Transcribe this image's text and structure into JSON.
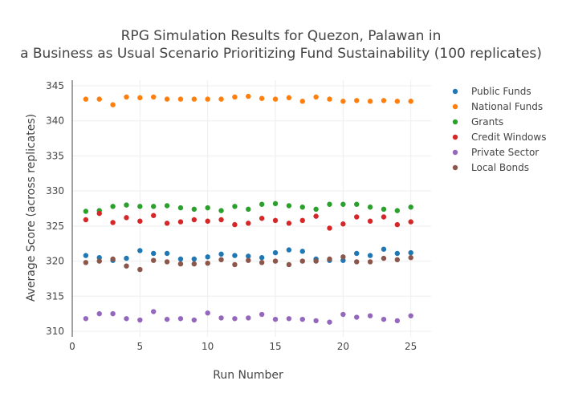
{
  "chart_data": {
    "type": "scatter",
    "title_lines": [
      "RPG Simulation Results for Quezon, Palawan in",
      "a Business as Usual Scenario Prioritizing Fund Sustainability (100 replicates)"
    ],
    "xlabel": "Run Number",
    "ylabel": "Average Score (across replicates)",
    "xlim": [
      0,
      26.5
    ],
    "ylim": [
      309.2,
      345.8
    ],
    "xticks": [
      0,
      5,
      10,
      15,
      20,
      25
    ],
    "yticks": [
      310,
      315,
      320,
      325,
      330,
      335,
      340,
      345
    ],
    "grid": true,
    "legend_position": "top-right",
    "x": [
      1,
      2,
      3,
      4,
      5,
      6,
      7,
      8,
      9,
      10,
      11,
      12,
      13,
      14,
      15,
      16,
      17,
      18,
      19,
      20,
      21,
      22,
      23,
      24,
      25
    ],
    "series": [
      {
        "name": "Public Funds",
        "color": "#1f77b4",
        "values": [
          320.8,
          320.5,
          320.1,
          320.4,
          321.5,
          321.1,
          321.1,
          320.3,
          320.3,
          320.6,
          321.0,
          320.8,
          320.7,
          320.5,
          321.2,
          321.6,
          321.4,
          320.3,
          320.1,
          320.1,
          321.1,
          320.8,
          321.7,
          321.1,
          321.2
        ]
      },
      {
        "name": "National Funds",
        "color": "#ff7f0e",
        "values": [
          343.1,
          343.1,
          342.3,
          343.4,
          343.3,
          343.4,
          343.1,
          343.1,
          343.1,
          343.1,
          343.1,
          343.4,
          343.5,
          343.2,
          343.1,
          343.3,
          342.8,
          343.4,
          343.1,
          342.8,
          342.9,
          342.8,
          342.9,
          342.8,
          342.8
        ]
      },
      {
        "name": "Grants",
        "color": "#2ca02c",
        "values": [
          327.1,
          327.2,
          327.8,
          328.0,
          327.8,
          327.8,
          327.9,
          327.6,
          327.4,
          327.6,
          327.2,
          327.8,
          327.4,
          328.1,
          328.2,
          327.9,
          327.7,
          327.4,
          328.1,
          328.1,
          328.1,
          327.7,
          327.4,
          327.2,
          327.7
        ]
      },
      {
        "name": "Credit Windows",
        "color": "#d62728",
        "values": [
          325.9,
          326.8,
          325.5,
          326.2,
          325.7,
          326.5,
          325.4,
          325.6,
          325.9,
          325.7,
          325.9,
          325.2,
          325.4,
          326.1,
          325.8,
          325.4,
          325.8,
          326.4,
          324.7,
          325.3,
          326.3,
          325.7,
          326.3,
          325.2,
          325.6
        ]
      },
      {
        "name": "Private Sector",
        "color": "#9467bd",
        "values": [
          311.8,
          312.5,
          312.5,
          311.8,
          311.6,
          312.8,
          311.7,
          311.8,
          311.6,
          312.6,
          311.9,
          311.8,
          311.9,
          312.4,
          311.7,
          311.8,
          311.7,
          311.5,
          311.3,
          312.4,
          312.0,
          312.2,
          311.7,
          311.5,
          312.2
        ]
      },
      {
        "name": "Local Bonds",
        "color": "#8c564b",
        "values": [
          319.8,
          320.0,
          320.3,
          319.3,
          318.8,
          320.1,
          319.9,
          319.6,
          319.6,
          319.7,
          320.2,
          319.5,
          320.1,
          319.8,
          320.0,
          319.5,
          320.0,
          320.0,
          320.3,
          320.6,
          319.9,
          319.9,
          320.4,
          320.2,
          320.5
        ]
      }
    ]
  }
}
